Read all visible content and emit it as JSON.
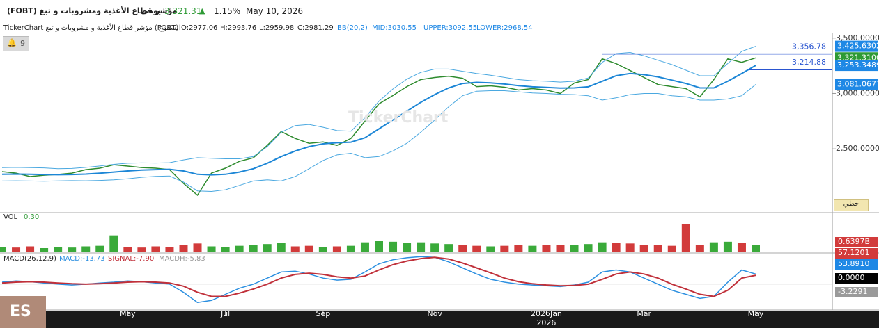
{
  "header": {
    "title": "مؤشر قطاع الأغذية ومشروبات و تبغ (FOBT)",
    "period": "يومي",
    "last": "3,321.31",
    "change": "1.15%",
    "date": "May 10, 2026",
    "info": "TickerChart مؤشر قطاع الأغذية و مشروبات و تبغ (FOBT)",
    "style": "الشموع",
    "ohlc": [
      "O:2977.06",
      "H:2993.76",
      "L:2959.98",
      "C:2981.29"
    ],
    "bb": [
      "BB(20,2)",
      "MID:3030.55",
      "UPPER:3092.55",
      "LOWER:2968.54"
    ],
    "alerts": "9",
    "line_button": "خطي",
    "watermark": "TickerChart",
    "corner": "ES"
  },
  "chart_data": [
    {
      "type": "line",
      "categories": [
        null,
        null,
        null,
        null,
        null,
        null,
        null,
        null,
        null,
        "May",
        null,
        null,
        null,
        null,
        null,
        null,
        "Jul",
        null,
        null,
        null,
        null,
        null,
        null,
        "Sep",
        null,
        null,
        null,
        null,
        null,
        null,
        null,
        "Nov",
        null,
        null,
        null,
        null,
        null,
        null,
        null,
        "2026Jan",
        null,
        null,
        null,
        null,
        null,
        null,
        "Mar",
        null,
        null,
        null,
        null,
        null,
        null,
        null,
        "May"
      ],
      "year_label": "2026",
      "series": [
        {
          "color": "#2e8b2e",
          "values": [
            2294,
            2281,
            2250,
            2262,
            2269,
            2281,
            2312,
            2325,
            2356,
            2344,
            2331,
            2325,
            2312,
            2187,
            2081,
            2281,
            2325,
            2387,
            2419,
            2531,
            2656,
            2594,
            2550,
            2562,
            2531,
            2594,
            2750,
            2906,
            2981,
            3062,
            3125,
            3144,
            3156,
            3137,
            3062,
            3069,
            3056,
            3031,
            3044,
            3031,
            3000,
            3094,
            3125,
            3312,
            3269,
            3206,
            3144,
            3081,
            3062,
            3044,
            2969,
            3125,
            3312,
            3281,
            3321.31
          ]
        },
        {
          "color": "#1c86d6",
          "values": [
            2270,
            2272,
            2270,
            2268,
            2266,
            2268,
            2272,
            2280,
            2290,
            2300,
            2308,
            2312,
            2315,
            2300,
            2270,
            2265,
            2270,
            2290,
            2320,
            2370,
            2430,
            2480,
            2520,
            2545,
            2555,
            2560,
            2600,
            2680,
            2760,
            2840,
            2920,
            2990,
            3050,
            3090,
            3100,
            3095,
            3085,
            3070,
            3060,
            3055,
            3048,
            3050,
            3060,
            3110,
            3160,
            3180,
            3170,
            3150,
            3120,
            3090,
            3050,
            3050,
            3110,
            3180,
            3253.3489
          ]
        },
        {
          "color": "#4aa8e0",
          "values": [
            2330,
            2332,
            2330,
            2328,
            2321,
            2323,
            2332,
            2345,
            2360,
            2370,
            2373,
            2372,
            2375,
            2400,
            2420,
            2415,
            2410,
            2410,
            2430,
            2520,
            2650,
            2710,
            2720,
            2695,
            2665,
            2660,
            2780,
            2930,
            3040,
            3130,
            3190,
            3220,
            3220,
            3200,
            3180,
            3165,
            3145,
            3125,
            3115,
            3110,
            3103,
            3110,
            3140,
            3280,
            3360,
            3370,
            3340,
            3300,
            3260,
            3210,
            3160,
            3160,
            3270,
            3380,
            3425.6302
          ]
        },
        {
          "color": "#4aa8e0",
          "values": [
            2210,
            2212,
            2210,
            2208,
            2211,
            2213,
            2212,
            2215,
            2220,
            2230,
            2243,
            2252,
            2255,
            2200,
            2120,
            2115,
            2130,
            2170,
            2210,
            2220,
            2210,
            2250,
            2320,
            2395,
            2445,
            2460,
            2420,
            2430,
            2480,
            2550,
            2650,
            2760,
            2880,
            2980,
            3020,
            3025,
            3025,
            3015,
            3005,
            3000,
            2993,
            2990,
            2980,
            2940,
            2960,
            2990,
            3000,
            3000,
            2980,
            2970,
            2940,
            2940,
            2950,
            2980,
            3081.0677
          ]
        }
      ],
      "ylim": [
        1930,
        3530
      ],
      "yticks": [
        {
          "value": 2500,
          "label": "2,500.0000"
        },
        {
          "value": 3000,
          "label": "3,000.0000"
        },
        {
          "value": 3500,
          "label": "3,500.0000"
        }
      ],
      "hlines": [
        {
          "value": 3356.78,
          "label": "3,356.78"
        },
        {
          "value": 3214.88,
          "label": "3,214.88"
        }
      ],
      "tags": [
        {
          "value": 3425.6302,
          "label": "3,425.6302",
          "color": "#1e88e5"
        },
        {
          "value": 3321.31,
          "label": "3,321.3100",
          "color": "#2e9a35"
        },
        {
          "value": 3253.3489,
          "label": "3,253.3489",
          "color": "#1e88e5"
        },
        {
          "value": 3081.0677,
          "label": "3,081.0677",
          "color": "#1e88e5"
        }
      ]
    },
    {
      "type": "bar",
      "title": "VOL",
      "subtitle": "0.30",
      "color": "#3aaa3a",
      "down_color": "#d23b3b",
      "values": [
        0.08,
        0.07,
        0.09,
        0.06,
        0.08,
        0.07,
        0.09,
        0.1,
        0.28,
        0.08,
        0.07,
        0.09,
        0.08,
        0.12,
        0.14,
        0.09,
        0.08,
        0.1,
        0.11,
        0.13,
        0.15,
        0.09,
        0.1,
        0.08,
        0.09,
        0.1,
        0.16,
        0.18,
        0.17,
        0.15,
        0.16,
        0.14,
        0.13,
        0.11,
        0.1,
        0.09,
        0.1,
        0.11,
        0.1,
        0.12,
        0.11,
        0.12,
        0.13,
        0.16,
        0.15,
        0.14,
        0.12,
        0.11,
        0.1,
        0.48,
        0.11,
        0.16,
        0.17,
        0.15,
        0.12
      ],
      "ylim": [
        0,
        0.6
      ],
      "tags": [
        {
          "label": "0.6397B",
          "color": "#d23b3b"
        },
        {
          "label": "57.1201",
          "color": "#d23b3b"
        }
      ]
    },
    {
      "type": "line",
      "title": "MACD(26,12,9)",
      "legend": [
        "MACD:-13.73",
        "SIGNAL:-7.90",
        "MACDH:-5.83"
      ],
      "series": [
        {
          "color": "#2b8fe0",
          "values": [
            5,
            8,
            6,
            3,
            0,
            -2,
            0,
            3,
            5,
            8,
            6,
            3,
            0,
            -20,
            -45,
            -40,
            -25,
            -10,
            0,
            15,
            30,
            32,
            25,
            15,
            10,
            12,
            30,
            50,
            60,
            65,
            68,
            66,
            55,
            40,
            25,
            12,
            5,
            0,
            -2,
            -4,
            -6,
            -2,
            5,
            30,
            35,
            30,
            15,
            0,
            -15,
            -25,
            -35,
            -30,
            5,
            35,
            25
          ]
        },
        {
          "color": "#c0303a",
          "values": [
            3,
            5,
            6,
            5,
            3,
            1,
            0,
            1,
            3,
            5,
            6,
            5,
            3,
            -5,
            -20,
            -30,
            -30,
            -22,
            -12,
            0,
            15,
            24,
            27,
            24,
            18,
            15,
            20,
            35,
            48,
            57,
            63,
            66,
            62,
            52,
            40,
            28,
            15,
            6,
            1,
            -2,
            -4,
            -3,
            0,
            12,
            25,
            30,
            25,
            15,
            0,
            -12,
            -25,
            -30,
            -15,
            15,
            22
          ]
        }
      ],
      "ylim": [
        -60,
        70
      ],
      "tags": [
        {
          "label": "53.8910",
          "color": "#1e88e5"
        },
        {
          "label": "0.0000",
          "color": "#000000"
        },
        {
          "label": "-3.2291",
          "color": "#9a9a9a"
        }
      ]
    }
  ]
}
